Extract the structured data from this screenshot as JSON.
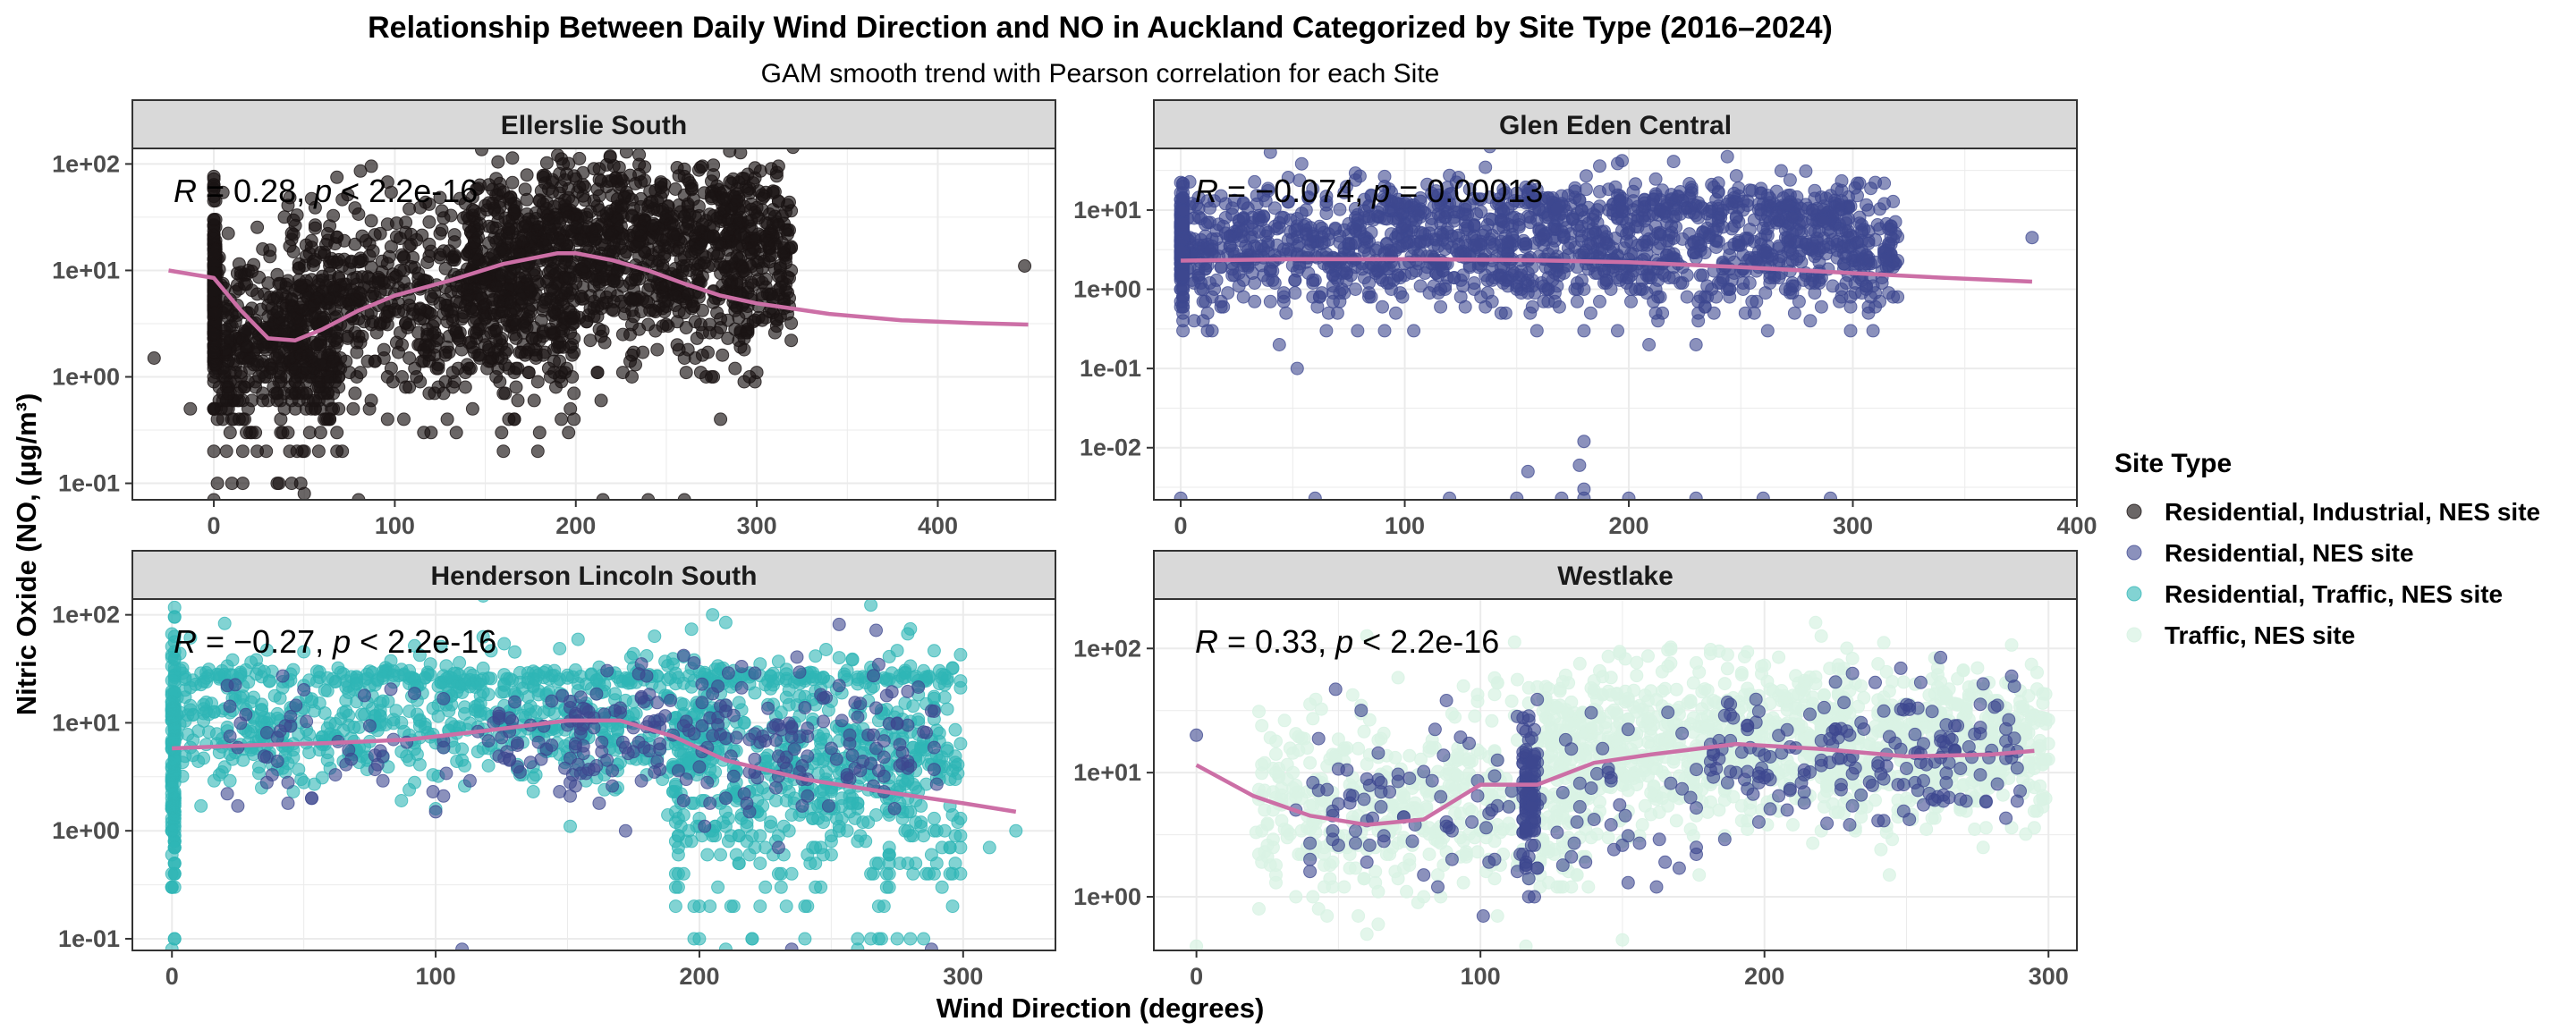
{
  "chart_data": {
    "type": "scatter",
    "title": "Relationship Between Daily Wind Direction and  NO  in Auckland Categorized by Site Type (2016–2024)",
    "subtitle": "GAM smooth trend with Pearson correlation for each Site",
    "xlabel": "Wind Direction (degrees)",
    "ylabel": "Nitric Oxide (NO, (µg/m³)",
    "y_scale": "log10",
    "grid": true,
    "legend": {
      "title": "Site Type",
      "placement": "right",
      "entries": [
        {
          "label": "Residential, Industrial, NES site",
          "color": "#1a1414",
          "opacity": 0.65
        },
        {
          "label": "Residential, NES site",
          "color": "#3d4890",
          "opacity": 0.6
        },
        {
          "label": "Residential, Traffic, NES site",
          "color": "#2fb5b5",
          "opacity": 0.6
        },
        {
          "label": "Traffic, NES site",
          "color": "#d9f3e4",
          "opacity": 0.75
        }
      ]
    },
    "smooth_color": "#cc6fa6",
    "panels": [
      {
        "name": "Ellerslie South",
        "xlim": [
          -45,
          465
        ],
        "ylim": [
          0.07,
          140
        ],
        "xticks": [
          0,
          100,
          200,
          300,
          400
        ],
        "yticks": [
          0.1,
          1,
          10,
          100
        ],
        "ytick_labels": [
          "1e-01",
          "1e+00",
          "1e+01",
          "1e+02"
        ],
        "stat": {
          "R": "0.28",
          "p": "< 2.2e-16"
        },
        "smooth": {
          "x": [
            -25,
            0,
            15,
            30,
            45,
            60,
            80,
            100,
            130,
            160,
            190,
            200,
            220,
            240,
            260,
            280,
            300,
            340,
            380,
            420,
            450
          ],
          "y": [
            10,
            8.5,
            4.2,
            2.3,
            2.2,
            2.8,
            4.2,
            5.8,
            8,
            11.5,
            14.5,
            14.5,
            12.5,
            10,
            7.5,
            5.8,
            4.9,
            3.9,
            3.4,
            3.2,
            3.1
          ]
        },
        "series": [
          {
            "site_type": "Residential, Industrial, NES site",
            "count": 2600,
            "clusters": [
              {
                "weight": 0.38,
                "x": [
                  140,
                  320
                ],
                "logmu": 1.1,
                "logsd": 0.45
              },
              {
                "weight": 0.28,
                "x": [
                  40,
                  200
                ],
                "logmu": 0.65,
                "logsd": 0.5
              },
              {
                "weight": 0.18,
                "x": [
                  0,
                  70
                ],
                "logmu": 0.3,
                "logsd": 0.45
              },
              {
                "weight": 0.08,
                "x": [
                  0,
                  0.8
                ],
                "logmu": 0.75,
                "logsd": 0.45
              },
              {
                "weight": 0.08,
                "x": [
                  180,
                  300
                ],
                "logmu": 1.55,
                "logsd": 0.25
              }
            ],
            "extra_points": [
              [
                -33,
                1.5
              ],
              [
                -13,
                0.5
              ],
              [
                448,
                11
              ],
              [
                0,
                0.07
              ],
              [
                10,
                0.1
              ],
              [
                50,
                0.08
              ],
              [
                80,
                0.07
              ],
              [
                215,
                0.07
              ],
              [
                240,
                0.07
              ],
              [
                260,
                0.07
              ]
            ]
          }
        ]
      },
      {
        "name": "Glen Eden Central",
        "xlim": [
          -12,
          400
        ],
        "ylim": [
          0.0022,
          60
        ],
        "xticks": [
          0,
          100,
          200,
          300,
          400
        ],
        "yticks": [
          0.01,
          0.1,
          1,
          10
        ],
        "ytick_labels": [
          "1e-02",
          "1e-01",
          "1e+00",
          "1e+01"
        ],
        "stat": {
          "R": "−0.074",
          "p": "0.00013"
        },
        "smooth": {
          "x": [
            0,
            50,
            100,
            150,
            200,
            250,
            300,
            340,
            380
          ],
          "y": [
            2.3,
            2.4,
            2.4,
            2.35,
            2.2,
            1.9,
            1.6,
            1.4,
            1.25
          ]
        },
        "series": [
          {
            "site_type": "Residential, NES site",
            "count": 1900,
            "clusters": [
              {
                "weight": 0.75,
                "x": [
                  0,
                  320
                ],
                "logmu": 0.5,
                "logsd": 0.4
              },
              {
                "weight": 0.1,
                "x": [
                  0,
                  1.5
                ],
                "logmu": 0.5,
                "logsd": 0.4
              },
              {
                "weight": 0.15,
                "x": [
                  80,
                  300
                ],
                "logmu": 1.05,
                "logsd": 0.12
              }
            ],
            "extra_points": [
              [
                0,
                0.0023
              ],
              [
                60,
                0.0023
              ],
              [
                120,
                0.0023
              ],
              [
                150,
                0.0023
              ],
              [
                170,
                0.0023
              ],
              [
                180,
                0.0023
              ],
              [
                200,
                0.0023
              ],
              [
                230,
                0.0023
              ],
              [
                260,
                0.0023
              ],
              [
                290,
                0.0023
              ],
              [
                380,
                4.5
              ],
              [
                155,
                0.005
              ],
              [
                178,
                0.006
              ],
              [
                180,
                0.012
              ],
              [
                197,
                42
              ],
              [
                180,
                0.003
              ]
            ]
          }
        ]
      },
      {
        "name": "Henderson Lincoln South",
        "xlim": [
          -15,
          335
        ],
        "ylim": [
          0.078,
          140
        ],
        "xticks": [
          0,
          100,
          200,
          300
        ],
        "yticks": [
          0.1,
          1,
          10,
          100
        ],
        "ytick_labels": [
          "1e-01",
          "1e+00",
          "1e+01",
          "1e+02"
        ],
        "stat": {
          "R": "−0.27",
          "p": "< 2.2e-16"
        },
        "smooth": {
          "x": [
            0,
            30,
            60,
            90,
            120,
            150,
            170,
            190,
            210,
            240,
            270,
            300,
            320
          ],
          "y": [
            5.8,
            6.2,
            6.5,
            7,
            8.5,
            10.5,
            10.5,
            7.5,
            4.5,
            3,
            2.3,
            1.8,
            1.5
          ]
        },
        "series": [
          {
            "site_type": "Residential, Traffic, NES site",
            "count": 1700,
            "clusters": [
              {
                "weight": 0.4,
                "x": [
                  0,
                  210
                ],
                "logmu": 1.0,
                "logsd": 0.32
              },
              {
                "weight": 0.35,
                "x": [
                  190,
                  300
                ],
                "logmu": 0.45,
                "logsd": 0.55
              },
              {
                "weight": 0.1,
                "x": [
                  0,
                  1.2
                ],
                "logmu": 0.7,
                "logsd": 0.6
              },
              {
                "weight": 0.15,
                "x": [
                  0,
                  300
                ],
                "logmu": 1.42,
                "logsd": 0.05
              }
            ],
            "extra_points": [
              [
                205,
                100
              ],
              [
                310,
                0.7
              ],
              [
                320,
                1.0
              ],
              [
                200,
                0.1
              ],
              [
                220,
                0.1
              ],
              [
                240,
                0.1
              ],
              [
                260,
                0.1
              ],
              [
                280,
                0.1
              ],
              [
                0,
                0.08
              ],
              [
                210,
                0.08
              ],
              [
                260,
                0.08
              ]
            ]
          },
          {
            "site_type": "Residential, NES site",
            "count": 300,
            "clusters": [
              {
                "weight": 0.6,
                "x": [
                  150,
                  290
                ],
                "logmu": 0.9,
                "logsd": 0.35
              },
              {
                "weight": 0.4,
                "x": [
                  20,
                  200
                ],
                "logmu": 0.8,
                "logsd": 0.3
              }
            ],
            "extra_points": [
              [
                110,
                0.08
              ],
              [
                235,
                0.08
              ],
              [
                288,
                0.08
              ]
            ]
          }
        ]
      },
      {
        "name": "Westlake",
        "xlim": [
          -15,
          310
        ],
        "ylim": [
          0.37,
          250
        ],
        "xticks": [
          0,
          100,
          200,
          300
        ],
        "yticks": [
          1,
          10,
          100
        ],
        "ytick_labels": [
          "1e+00",
          "1e+01",
          "1e+02"
        ],
        "stat": {
          "R": "0.33",
          "p": "< 2.2e-16"
        },
        "smooth": {
          "x": [
            0,
            20,
            40,
            60,
            80,
            100,
            120,
            140,
            160,
            190,
            220,
            250,
            280,
            295
          ],
          "y": [
            11.5,
            6.5,
            4.5,
            3.8,
            4.2,
            8,
            8,
            12,
            14,
            17,
            15.5,
            13.5,
            14,
            15
          ]
        },
        "series": [
          {
            "site_type": "Traffic, NES site",
            "count": 1700,
            "clusters": [
              {
                "weight": 0.7,
                "x": [
                  120,
                  300
                ],
                "logmu": 1.25,
                "logsd": 0.33
              },
              {
                "weight": 0.3,
                "x": [
                  20,
                  140
                ],
                "logmu": 0.75,
                "logsd": 0.4
              }
            ],
            "extra_points": [
              [
                0,
                0.4
              ],
              [
                60,
                0.5
              ],
              [
                150,
                0.45
              ]
            ]
          },
          {
            "site_type": "Residential, NES site",
            "count": 420,
            "clusters": [
              {
                "weight": 0.45,
                "x": [
                  180,
                  290
                ],
                "logmu": 1.1,
                "logsd": 0.28
              },
              {
                "weight": 0.3,
                "x": [
                  30,
                  180
                ],
                "logmu": 0.75,
                "logsd": 0.35
              },
              {
                "weight": 0.25,
                "x": [
                  115,
                  120
                ],
                "logmu": 0.8,
                "logsd": 0.35
              }
            ],
            "extra_points": [
              [
                0,
                20
              ]
            ]
          }
        ]
      }
    ]
  }
}
